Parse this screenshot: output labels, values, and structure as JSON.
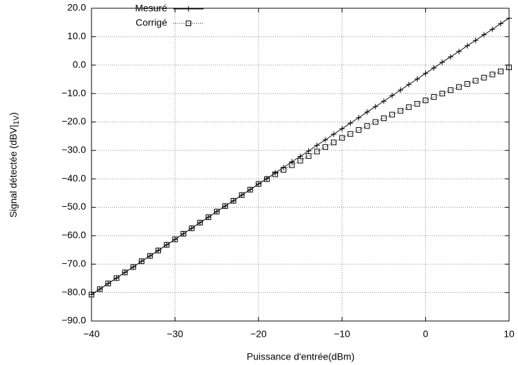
{
  "chart_data": {
    "type": "line",
    "x_label": "Puissance d'entrée(dBm)",
    "y_label": {
      "text": "Signal détectée (dBV|",
      "subscript": "1V",
      "suffix": ")"
    },
    "x": [
      -40,
      -39,
      -38,
      -37,
      -36,
      -35,
      -34,
      -33,
      -32,
      -31,
      -30,
      -29,
      -28,
      -27,
      -26,
      -25,
      -24,
      -23,
      -22,
      -21,
      -20,
      -19,
      -18,
      -17,
      -16,
      -15,
      -14,
      -13,
      -12,
      -11,
      -10,
      -9,
      -8,
      -7,
      -6,
      -5,
      -4,
      -3,
      -2,
      -1,
      0,
      1,
      2,
      3,
      4,
      5,
      6,
      7,
      8,
      9,
      10
    ],
    "series": [
      {
        "name": "Mesuré",
        "color": "#000000",
        "marker": "plus",
        "line": "solid",
        "values": [
          -80.7,
          -78.8,
          -76.8,
          -74.9,
          -72.9,
          -71.0,
          -69.0,
          -67.1,
          -65.2,
          -63.2,
          -61.3,
          -59.3,
          -57.4,
          -55.4,
          -53.5,
          -51.5,
          -49.6,
          -47.7,
          -45.7,
          -43.8,
          -41.8,
          -39.9,
          -37.9,
          -36.0,
          -34.0,
          -32.1,
          -30.2,
          -28.2,
          -26.3,
          -24.3,
          -22.4,
          -20.4,
          -18.5,
          -16.5,
          -14.6,
          -12.7,
          -10.7,
          -8.8,
          -6.8,
          -4.9,
          -2.9,
          -1.0,
          1.0,
          2.9,
          4.8,
          6.8,
          8.7,
          10.7,
          12.6,
          14.6,
          16.5
        ]
      },
      {
        "name": "Corrigé",
        "color": "#000000",
        "marker": "square",
        "line": "dotted",
        "values": [
          -80.7,
          -78.8,
          -76.8,
          -74.9,
          -72.9,
          -71.0,
          -69.0,
          -67.1,
          -65.2,
          -63.2,
          -61.3,
          -59.3,
          -57.4,
          -55.4,
          -53.5,
          -51.5,
          -49.6,
          -47.7,
          -45.7,
          -43.8,
          -41.8,
          -40.1,
          -38.4,
          -36.8,
          -35.2,
          -33.6,
          -32.0,
          -30.4,
          -28.8,
          -27.2,
          -25.6,
          -24.2,
          -22.8,
          -21.4,
          -20.0,
          -18.7,
          -17.4,
          -16.1,
          -14.8,
          -13.6,
          -12.4,
          -11.2,
          -10.0,
          -8.8,
          -7.7,
          -6.6,
          -5.5,
          -4.4,
          -3.3,
          -2.2,
          -0.8
        ]
      }
    ],
    "xlim": [
      -40,
      10
    ],
    "xticks": [
      {
        "value": -40,
        "label": "−40"
      },
      {
        "value": -30,
        "label": "−30"
      },
      {
        "value": -20,
        "label": "−20"
      },
      {
        "value": -10,
        "label": "−10"
      },
      0,
      10
    ],
    "ylim": [
      -90,
      20
    ],
    "yticks": [
      {
        "value": 20,
        "label": "20.0"
      },
      {
        "value": 10,
        "label": "10.0"
      },
      {
        "value": 0,
        "label": "0.0"
      },
      {
        "value": -10,
        "label": "−10.0"
      },
      {
        "value": -20,
        "label": "−20.0"
      },
      {
        "value": -30,
        "label": "−30.0"
      },
      {
        "value": -40,
        "label": "−40.0"
      },
      {
        "value": -50,
        "label": "−50.0"
      },
      {
        "value": -60,
        "label": "−60.0"
      },
      {
        "value": -70,
        "label": "−70.0"
      },
      {
        "value": -80,
        "label": "−80.0"
      },
      {
        "value": -90,
        "label": "−90.0"
      }
    ],
    "grid": true,
    "legend": "top-left"
  }
}
